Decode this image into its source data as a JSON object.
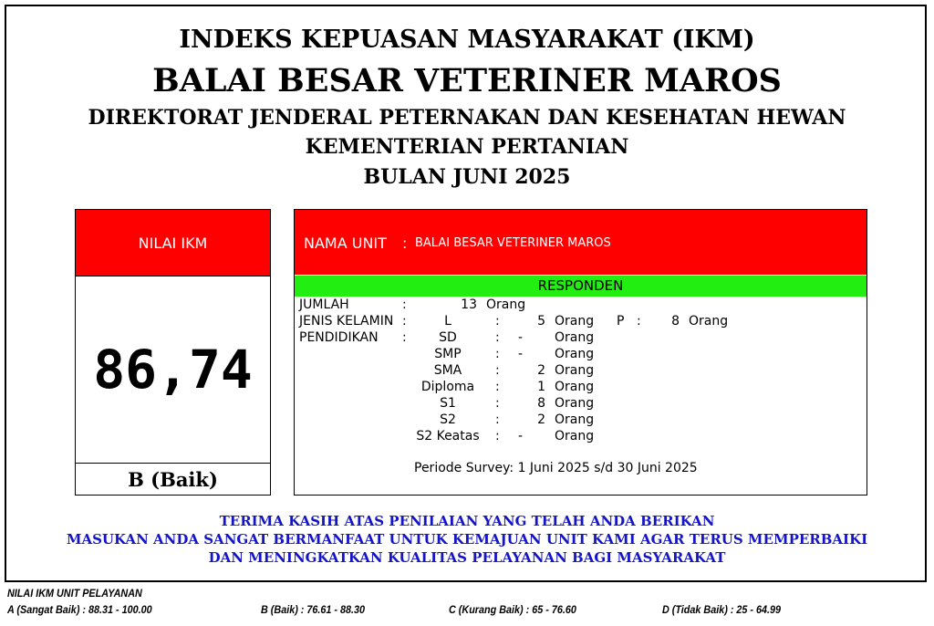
{
  "header": {
    "line1": "INDEKS KEPUASAN MASYARAKAT (IKM)",
    "line2": "BALAI BESAR VETERINER MAROS",
    "line3": "DIREKTORAT JENDERAL PETERNAKAN DAN KESEHATAN HEWAN",
    "line4": "KEMENTERIAN PERTANIAN",
    "line5": "BULAN JUNI 2025"
  },
  "ikm": {
    "label": "NILAI IKM",
    "value": "86,74",
    "grade": "B (Baik)"
  },
  "unit": {
    "label": "NAMA UNIT",
    "colon": ":",
    "name": "BALAI BESAR VETERINER MAROS"
  },
  "respondents": {
    "title": "RESPONDEN",
    "colon": ":",
    "unit": "Orang",
    "total_label": "JUMLAH",
    "total": "13",
    "gender_label": "JENIS KELAMIN",
    "male_label": "L",
    "male": "5",
    "female_label": "P",
    "female": "8",
    "education_label": "PENDIDIKAN",
    "education": [
      {
        "level": "SD",
        "count": "-"
      },
      {
        "level": "SMP",
        "count": "-"
      },
      {
        "level": "SMA",
        "count": "2"
      },
      {
        "level": "Diploma",
        "count": "1"
      },
      {
        "level": "S1",
        "count": "8"
      },
      {
        "level": "S2",
        "count": "2"
      },
      {
        "level": "S2 Keatas",
        "count": "-"
      }
    ],
    "period": "Periode Survey: 1 Juni 2025 s/d 30 Juni 2025"
  },
  "footer": {
    "line1": "TERIMA KASIH ATAS PENILAIAN YANG TELAH ANDA BERIKAN",
    "line2": "MASUKAN ANDA SANGAT BERMANFAAT UNTUK KEMAJUAN UNIT KAMI AGAR TERUS MEMPERBAIKI",
    "line3": "DAN MENINGKATKAN KUALITAS PELAYANAN BAGI MASYARAKAT"
  },
  "legend": {
    "title": "NILAI IKM UNIT PELAYANAN",
    "items": [
      "A (Sangat Baik) : 88.31 - 100.00",
      "B (Baik) : 76.61 - 88.30",
      "C (Kurang Baik) : 65 - 76.60",
      "D (Tidak Baik) : 25 - 64.99"
    ]
  },
  "colors": {
    "header_red": "#ff0000",
    "responden_green": "#22ee11",
    "footer_blue": "#1515c8"
  }
}
